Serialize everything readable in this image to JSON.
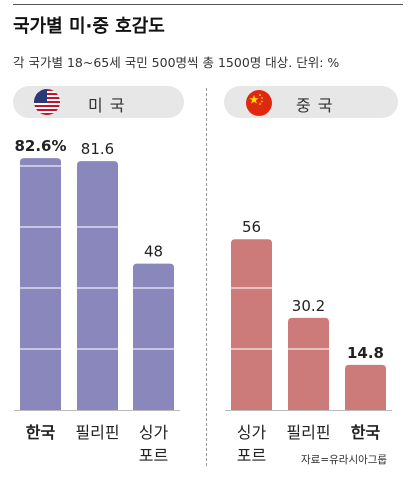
{
  "title": "국가별 미·중 호감도",
  "subtitle": "각 국가별 18~65세 국민 500명씩 총 1500명 대상. 단위: %",
  "source": "자료=유라시아그룹",
  "panels": [
    {
      "label": "미 국",
      "flag_icon": "us-flag-icon"
    },
    {
      "label": "중 국",
      "flag_icon": "china-flag-icon"
    }
  ],
  "colors": {
    "us_bar": "#8a87bd",
    "china_bar": "#cc7a7a",
    "pill": "#e7e7e7"
  },
  "chart_data": [
    {
      "type": "bar",
      "title": "미 국",
      "categories": [
        "한국",
        "필리핀",
        "싱가\n포르"
      ],
      "category_bold": [
        true,
        false,
        false
      ],
      "values": [
        82.6,
        81.6,
        48
      ],
      "value_labels": [
        "82.6%",
        "81.6",
        "48"
      ],
      "value_bold": [
        true,
        false,
        false
      ],
      "ylim": [
        0,
        100
      ],
      "grid": true,
      "color": "#8a87bd"
    },
    {
      "type": "bar",
      "title": "중 국",
      "categories": [
        "싱가\n포르",
        "필리핀",
        "한국"
      ],
      "category_bold": [
        false,
        false,
        true
      ],
      "values": [
        56,
        30.2,
        14.8
      ],
      "value_labels": [
        "56",
        "30.2",
        "14.8"
      ],
      "value_bold": [
        false,
        false,
        true
      ],
      "ylim": [
        0,
        100
      ],
      "grid": true,
      "color": "#cc7a7a"
    }
  ]
}
